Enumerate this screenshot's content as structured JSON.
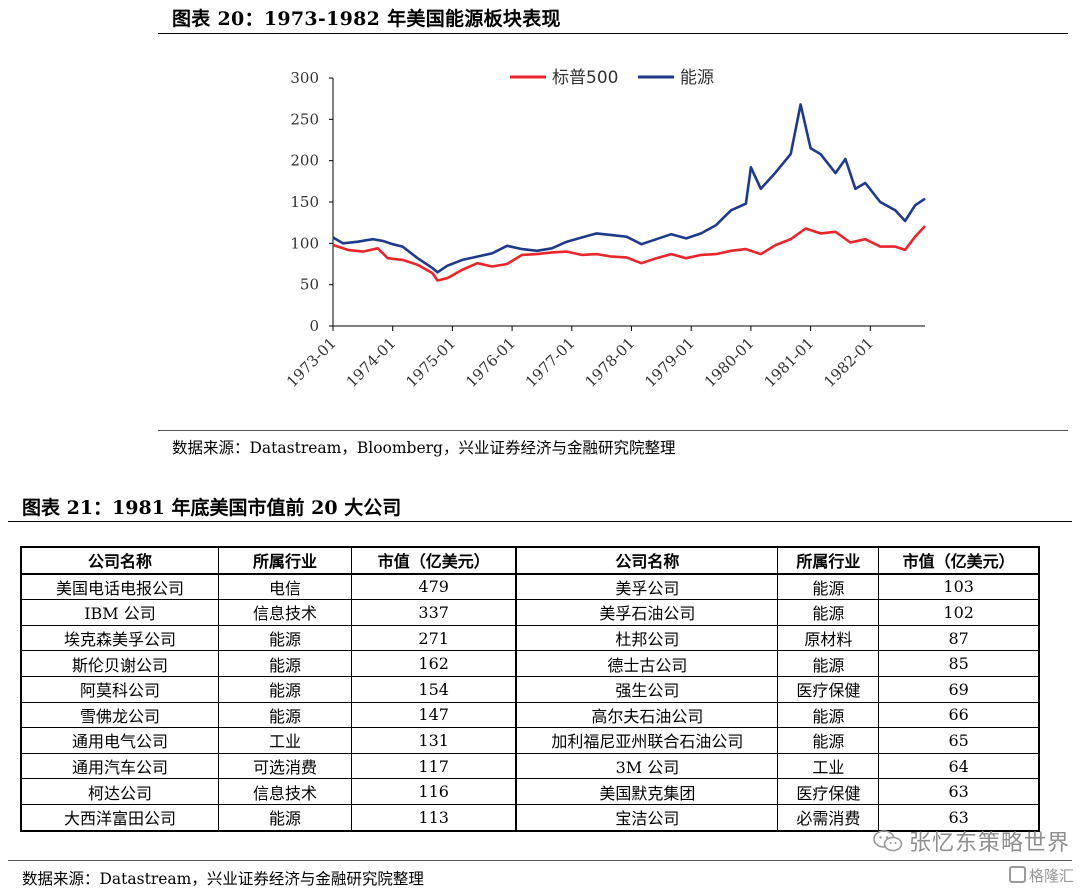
{
  "figure1": {
    "title": "图表 20：1973-1982 年美国能源板块表现",
    "source": "数据来源：Datastream，Bloomberg，兴业证券经济与金融研究院整理"
  },
  "chart_data": {
    "type": "line",
    "title": "",
    "xlabel": "",
    "ylabel": "",
    "ylim": [
      0,
      300
    ],
    "yticks": [
      0,
      50,
      100,
      150,
      200,
      250,
      300
    ],
    "xticks": [
      "1973-01",
      "1974-01",
      "1975-01",
      "1976-01",
      "1977-01",
      "1978-01",
      "1979-01",
      "1980-01",
      "1981-01",
      "1982-01"
    ],
    "legend_position": "top",
    "grid": false,
    "x_start": "1973-01",
    "x_end": "1982-12",
    "series": [
      {
        "name": "标普500",
        "color": "#e8262b",
        "points": [
          [
            "1973-01",
            98
          ],
          [
            "1973-04",
            92
          ],
          [
            "1973-07",
            90
          ],
          [
            "1973-10",
            94
          ],
          [
            "1973-12",
            82
          ],
          [
            "1974-03",
            80
          ],
          [
            "1974-06",
            74
          ],
          [
            "1974-09",
            64
          ],
          [
            "1974-10",
            55
          ],
          [
            "1974-12",
            58
          ],
          [
            "1975-03",
            68
          ],
          [
            "1975-06",
            76
          ],
          [
            "1975-09",
            72
          ],
          [
            "1975-12",
            75
          ],
          [
            "1976-03",
            86
          ],
          [
            "1976-06",
            87
          ],
          [
            "1976-09",
            89
          ],
          [
            "1976-12",
            90
          ],
          [
            "1977-03",
            86
          ],
          [
            "1977-06",
            87
          ],
          [
            "1977-09",
            84
          ],
          [
            "1977-12",
            83
          ],
          [
            "1978-03",
            76
          ],
          [
            "1978-06",
            82
          ],
          [
            "1978-09",
            87
          ],
          [
            "1978-12",
            82
          ],
          [
            "1979-03",
            86
          ],
          [
            "1979-06",
            87
          ],
          [
            "1979-09",
            91
          ],
          [
            "1979-12",
            93
          ],
          [
            "1980-03",
            87
          ],
          [
            "1980-06",
            98
          ],
          [
            "1980-09",
            105
          ],
          [
            "1980-12",
            118
          ],
          [
            "1981-03",
            112
          ],
          [
            "1981-06",
            114
          ],
          [
            "1981-09",
            101
          ],
          [
            "1981-12",
            105
          ],
          [
            "1982-03",
            96
          ],
          [
            "1982-06",
            96
          ],
          [
            "1982-08",
            92
          ],
          [
            "1982-10",
            108
          ],
          [
            "1982-12",
            121
          ]
        ]
      },
      {
        "name": "能源",
        "color": "#1f3a8a",
        "points": [
          [
            "1973-01",
            107
          ],
          [
            "1973-03",
            100
          ],
          [
            "1973-06",
            102
          ],
          [
            "1973-09",
            105
          ],
          [
            "1973-11",
            103
          ],
          [
            "1974-01",
            99
          ],
          [
            "1974-03",
            96
          ],
          [
            "1974-06",
            82
          ],
          [
            "1974-09",
            70
          ],
          [
            "1974-10",
            65
          ],
          [
            "1974-12",
            73
          ],
          [
            "1975-03",
            80
          ],
          [
            "1975-06",
            84
          ],
          [
            "1975-09",
            88
          ],
          [
            "1975-12",
            97
          ],
          [
            "1976-03",
            93
          ],
          [
            "1976-06",
            91
          ],
          [
            "1976-09",
            94
          ],
          [
            "1976-12",
            102
          ],
          [
            "1977-03",
            107
          ],
          [
            "1977-06",
            112
          ],
          [
            "1977-09",
            110
          ],
          [
            "1977-12",
            108
          ],
          [
            "1978-03",
            99
          ],
          [
            "1978-06",
            105
          ],
          [
            "1978-09",
            111
          ],
          [
            "1978-12",
            106
          ],
          [
            "1979-03",
            112
          ],
          [
            "1979-06",
            122
          ],
          [
            "1979-09",
            140
          ],
          [
            "1979-12",
            148
          ],
          [
            "1980-01",
            192
          ],
          [
            "1980-03",
            166
          ],
          [
            "1980-06",
            186
          ],
          [
            "1980-09",
            208
          ],
          [
            "1980-11",
            268
          ],
          [
            "1981-01",
            215
          ],
          [
            "1981-03",
            208
          ],
          [
            "1981-06",
            185
          ],
          [
            "1981-08",
            202
          ],
          [
            "1981-10",
            166
          ],
          [
            "1981-12",
            173
          ],
          [
            "1982-03",
            150
          ],
          [
            "1982-06",
            140
          ],
          [
            "1982-08",
            127
          ],
          [
            "1982-10",
            146
          ],
          [
            "1982-12",
            154
          ]
        ]
      }
    ]
  },
  "figure2": {
    "title": "图表 21：1981 年底美国市值前 20 大公司",
    "source": "数据来源：Datastream，兴业证券经济与金融研究院整理",
    "headers": [
      "公司名称",
      "所属行业",
      "市值（亿美元）",
      "公司名称",
      "所属行业",
      "市值（亿美元）"
    ],
    "rows": [
      [
        "美国电话电报公司",
        "电信",
        "479",
        "美孚公司",
        "能源",
        "103"
      ],
      [
        "IBM 公司",
        "信息技术",
        "337",
        "美孚石油公司",
        "能源",
        "102"
      ],
      [
        "埃克森美孚公司",
        "能源",
        "271",
        "杜邦公司",
        "原材料",
        "87"
      ],
      [
        "斯伦贝谢公司",
        "能源",
        "162",
        "德士古公司",
        "能源",
        "85"
      ],
      [
        "阿莫科公司",
        "能源",
        "154",
        "强生公司",
        "医疗保健",
        "69"
      ],
      [
        "雪佛龙公司",
        "能源",
        "147",
        "高尔夫石油公司",
        "能源",
        "66"
      ],
      [
        "通用电气公司",
        "工业",
        "131",
        "加利福尼亚州联合石油公司",
        "能源",
        "65"
      ],
      [
        "通用汽车公司",
        "可选消费",
        "117",
        "3M 公司",
        "工业",
        "64"
      ],
      [
        "柯达公司",
        "信息技术",
        "116",
        "美国默克集团",
        "医疗保健",
        "63"
      ],
      [
        "大西洋富田公司",
        "能源",
        "113",
        "宝洁公司",
        "必需消费",
        "63"
      ]
    ]
  },
  "watermark": {
    "text": "张忆东策略世界",
    "logo": "格隆汇"
  }
}
